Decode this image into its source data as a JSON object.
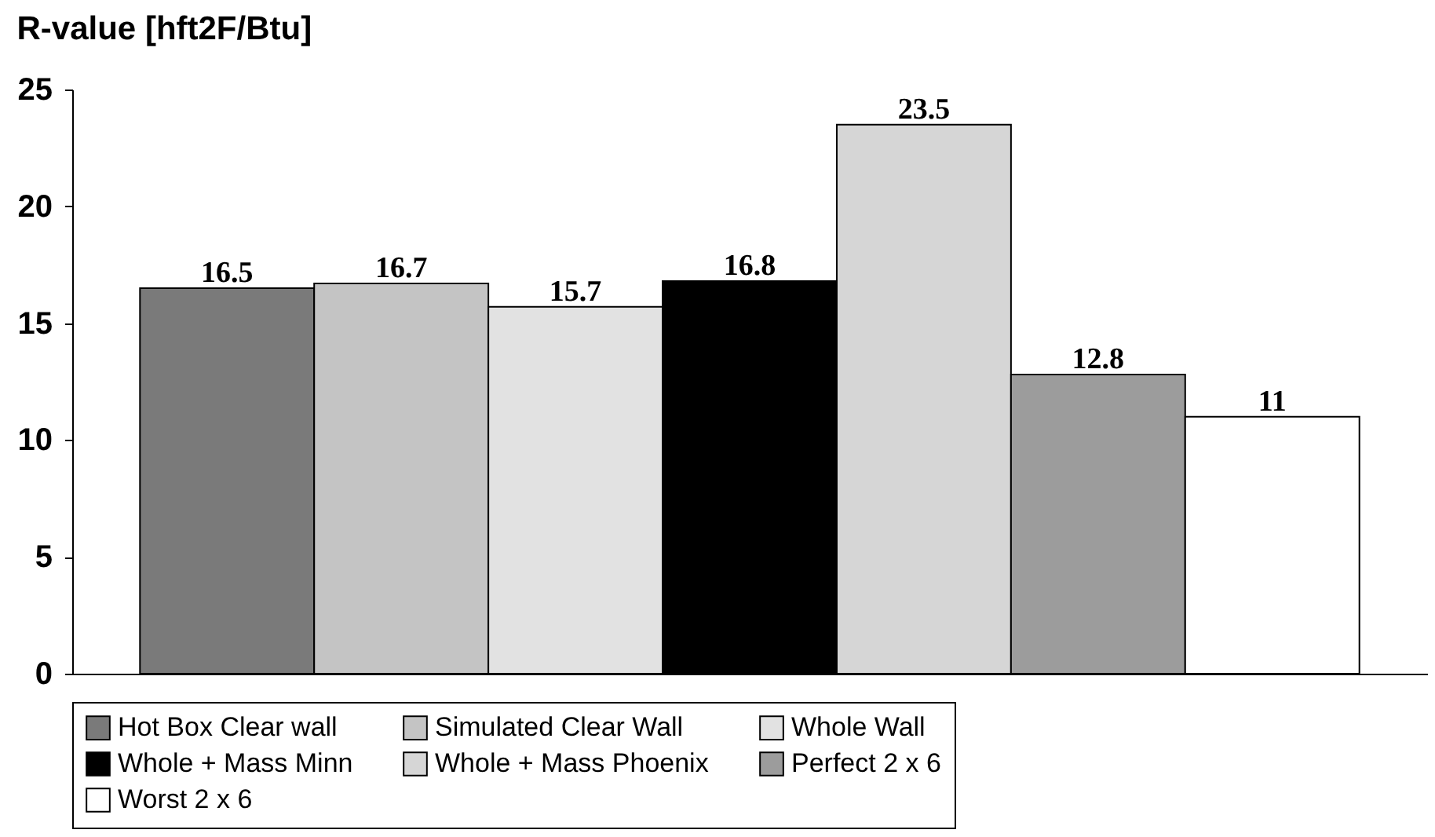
{
  "chart_data": {
    "type": "bar",
    "title": "R-value [hft2F/Btu]",
    "categories": [
      null
    ],
    "series": [
      {
        "name": "Hot Box Clear wall",
        "color": "#7a7a7a",
        "values": [
          16.5
        ]
      },
      {
        "name": "Simulated Clear Wall",
        "color": "#c4c4c4",
        "values": [
          16.7
        ]
      },
      {
        "name": "Whole Wall",
        "color": "#e2e2e2",
        "values": [
          15.7
        ]
      },
      {
        "name": "Whole + Mass Minn",
        "color": "#000000",
        "values": [
          16.8
        ]
      },
      {
        "name": "Whole + Mass Phoenix",
        "color": "#d6d6d6",
        "values": [
          23.5
        ]
      },
      {
        "name": "Perfect 2 x 6",
        "color": "#9c9c9c",
        "values": [
          12.8
        ]
      },
      {
        "name": "Worst 2 x 6",
        "color": "#ffffff",
        "values": [
          11
        ]
      }
    ],
    "ylim": [
      0,
      25
    ],
    "yticks": [
      0,
      5,
      10,
      15,
      20,
      25
    ],
    "grid": false,
    "legend": "bottom",
    "data_labels": true
  }
}
